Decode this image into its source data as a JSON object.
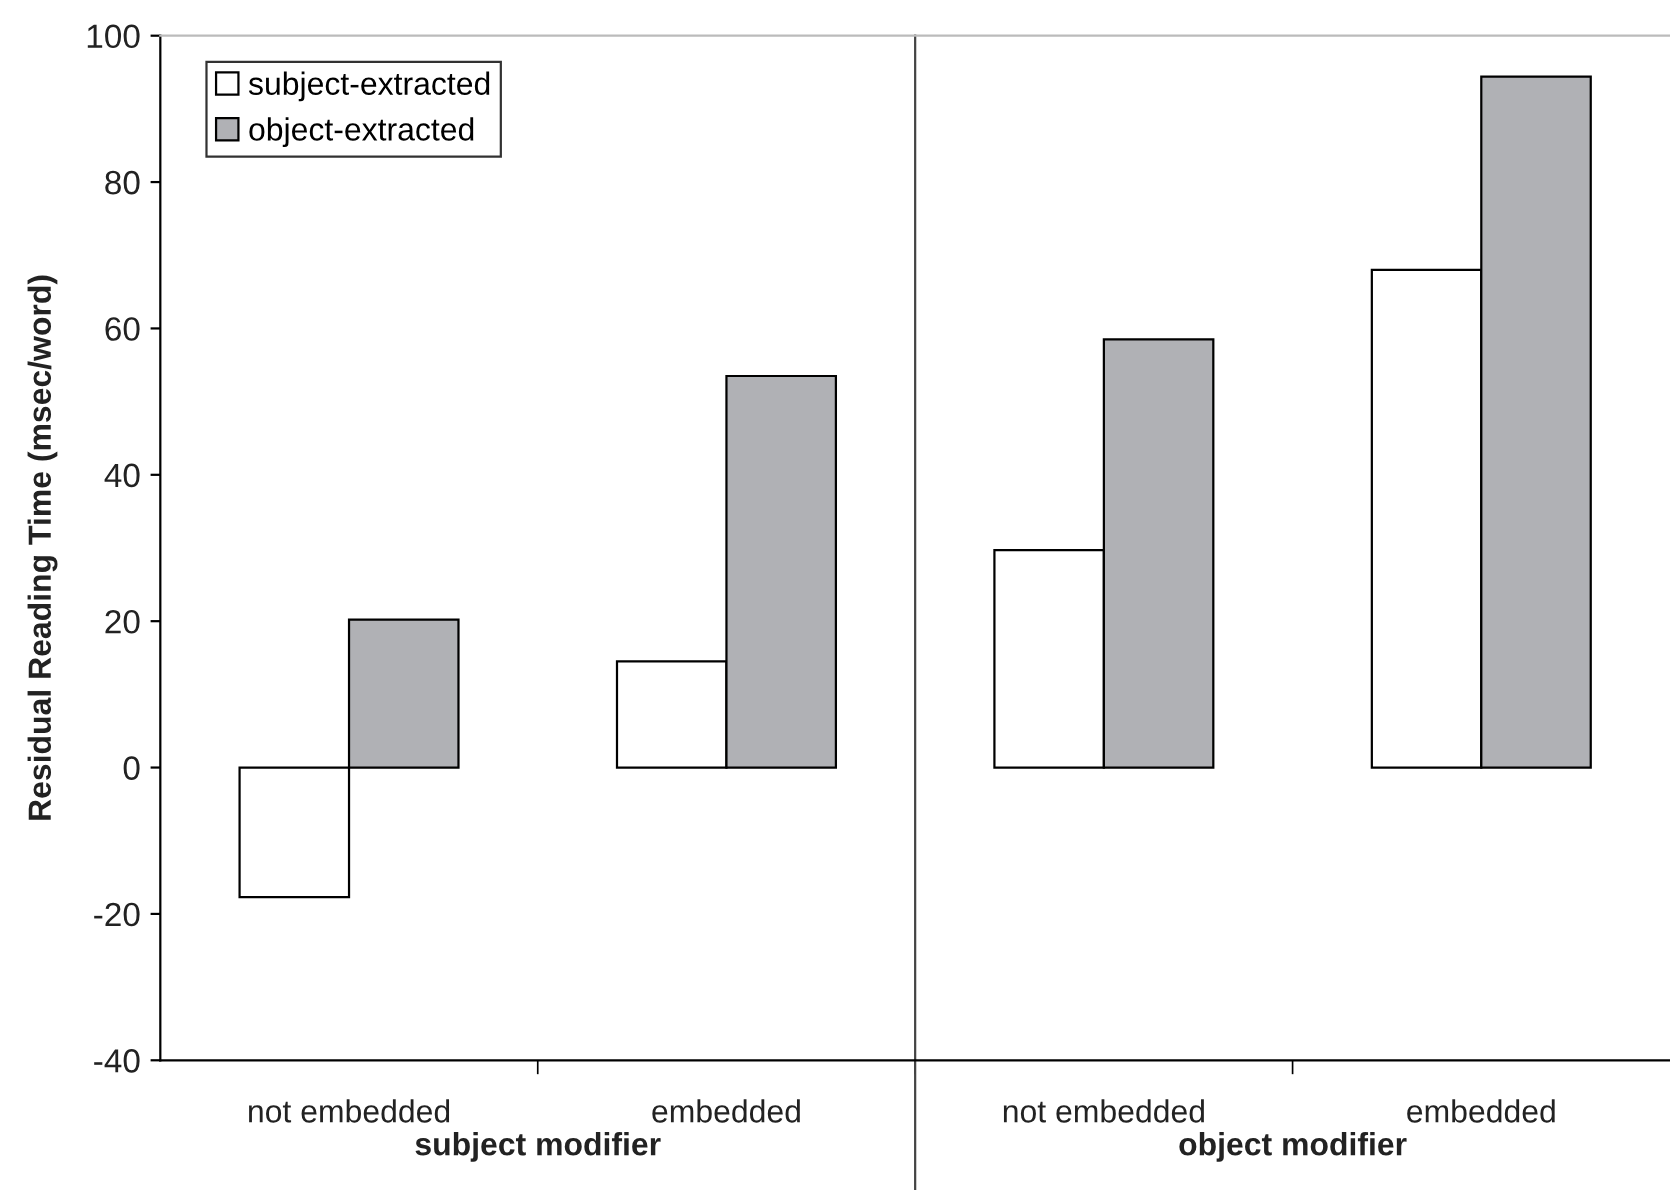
{
  "chart_data": {
    "type": "bar",
    "ylabel": "Residual Reading Time (msec/word)",
    "categories": [
      "not embedded",
      "embedded",
      "not embedded",
      "embedded"
    ],
    "series": [
      {
        "name": "subject-extracted",
        "color": "#ffffff",
        "values": [
          -17.7,
          14.5,
          29.7,
          68.0
        ]
      },
      {
        "name": "object-extracted",
        "color": "#b0b1b5",
        "values": [
          20.2,
          53.5,
          58.5,
          94.4
        ]
      }
    ],
    "annotations": [
      "subject modifier",
      "object modifier"
    ],
    "ylim": [
      -40,
      100
    ],
    "yticks": [
      -40,
      -20,
      0,
      20,
      40,
      60,
      80,
      100
    ],
    "grid": false,
    "legend": "top left"
  }
}
